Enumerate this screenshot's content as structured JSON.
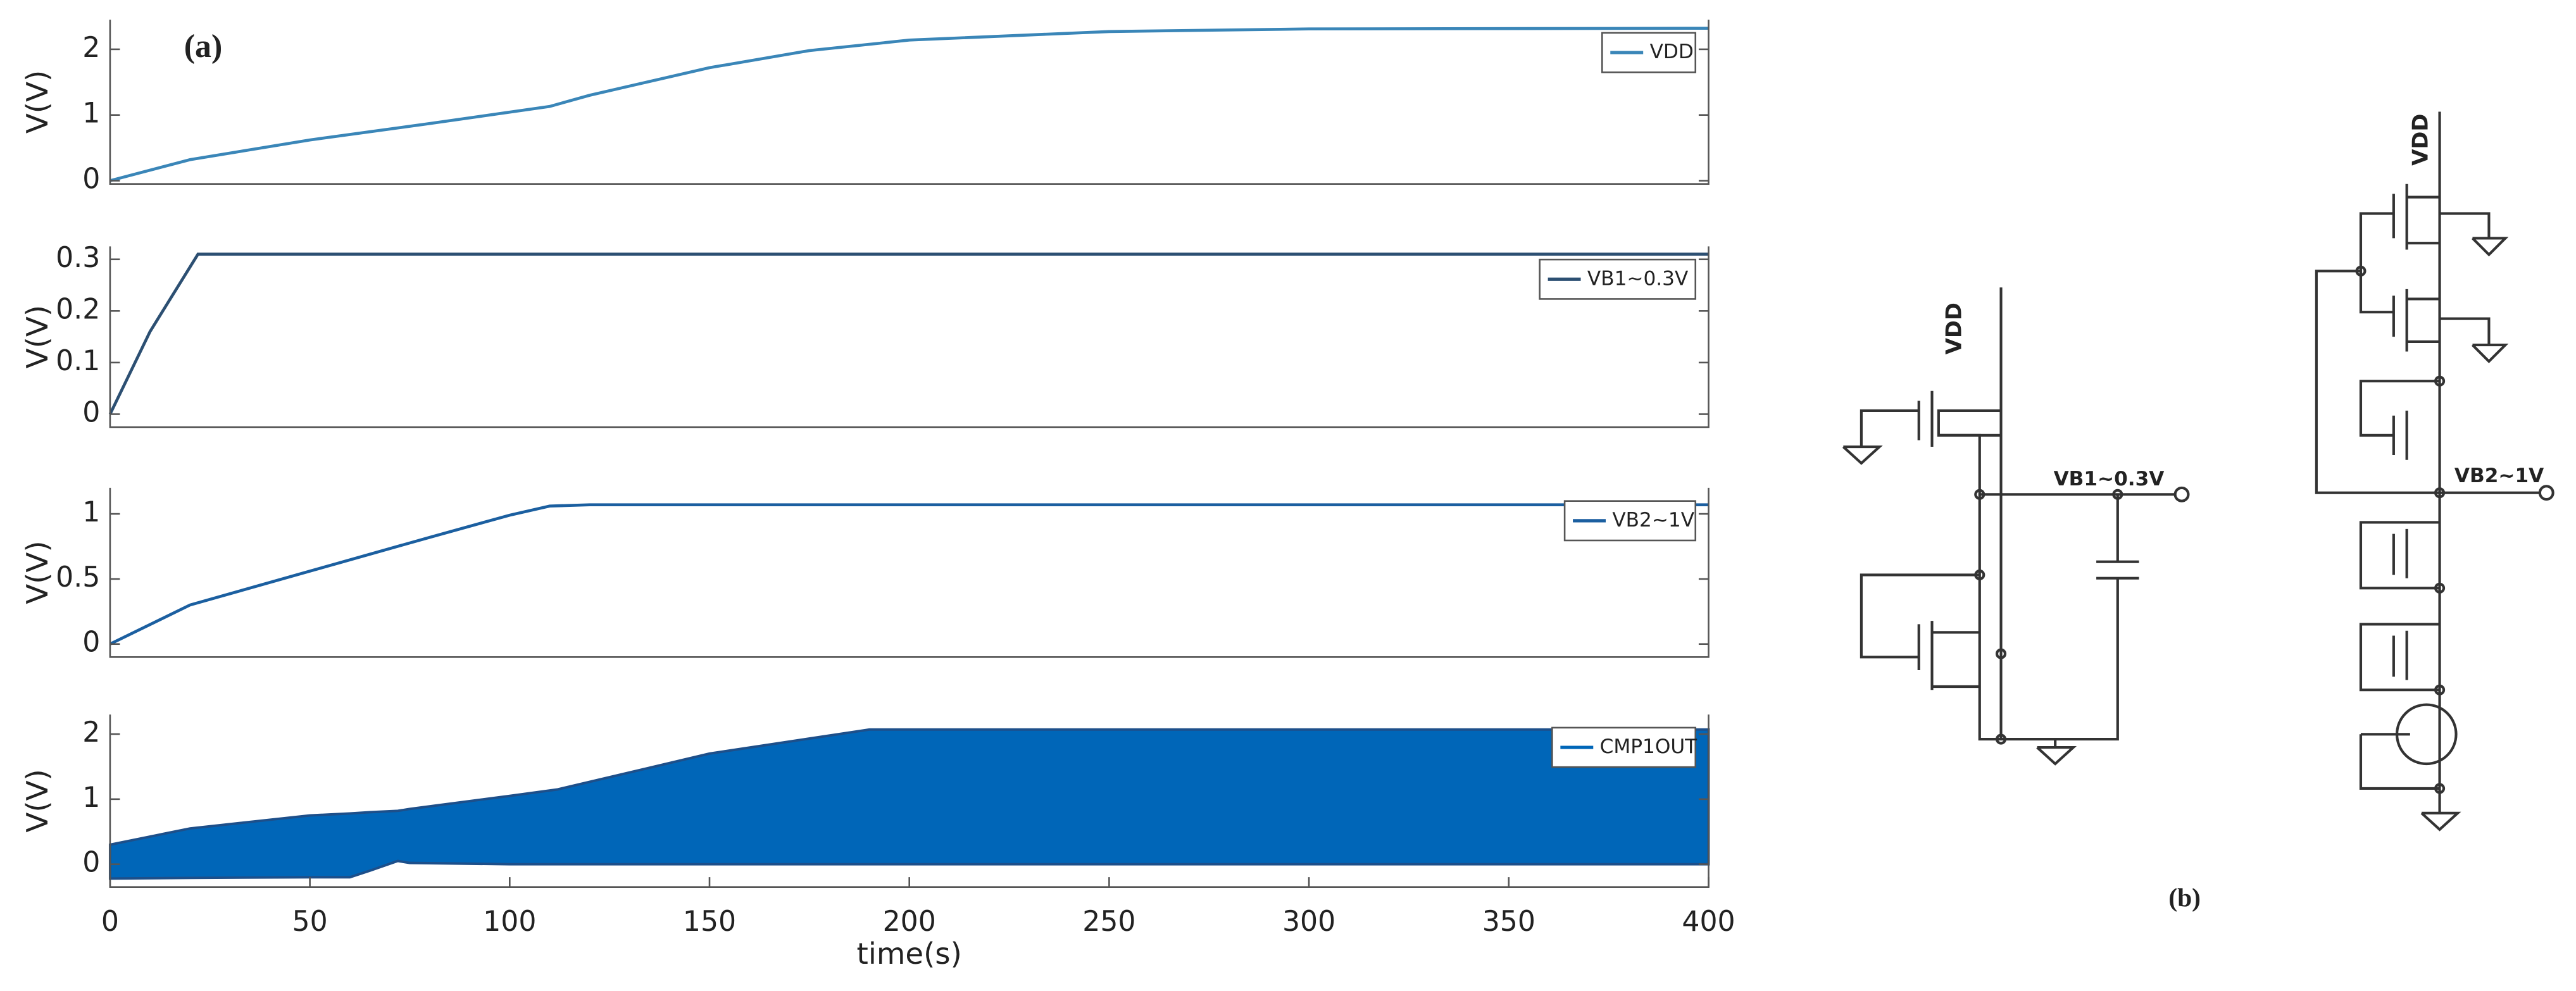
{
  "chart_data": [
    {
      "type": "line",
      "ylabel": "V(V)",
      "xlim": [
        0,
        400
      ],
      "ylim": [
        -0.05,
        2.45
      ],
      "yticks": [
        0,
        1,
        2
      ],
      "x": [
        0,
        20,
        50,
        80,
        110,
        120,
        150,
        175,
        200,
        250,
        300,
        400
      ],
      "series": [
        {
          "name": "VDD",
          "color": "#3a86b8",
          "values": [
            0,
            0.32,
            0.62,
            0.87,
            1.13,
            1.3,
            1.72,
            1.98,
            2.14,
            2.27,
            2.31,
            2.32
          ]
        }
      ]
    },
    {
      "type": "line",
      "ylabel": "V(V)",
      "xlim": [
        0,
        400
      ],
      "ylim": [
        -0.025,
        0.325
      ],
      "yticks": [
        0,
        0.1,
        0.2,
        0.3
      ],
      "x": [
        0,
        10,
        22,
        400
      ],
      "series": [
        {
          "name": "VB1~0.3V",
          "color": "#2c4f72",
          "values": [
            0,
            0.16,
            0.31,
            0.31
          ]
        }
      ]
    },
    {
      "type": "line",
      "ylabel": "V(V)",
      "xlim": [
        0,
        400
      ],
      "ylim": [
        -0.1,
        1.2
      ],
      "yticks": [
        0,
        0.5,
        1
      ],
      "x": [
        0,
        20,
        50,
        80,
        100,
        110,
        120,
        400
      ],
      "series": [
        {
          "name": "VB2~1V",
          "color": "#1b5fa0",
          "values": [
            0,
            0.3,
            0.56,
            0.82,
            0.99,
            1.06,
            1.07,
            1.07
          ]
        }
      ]
    },
    {
      "type": "area",
      "ylabel": "V(V)",
      "xlabel": "time(s)",
      "xlim": [
        0,
        400
      ],
      "ylim": [
        -0.35,
        2.3
      ],
      "yticks": [
        0,
        1,
        2
      ],
      "xticks": [
        0,
        50,
        100,
        150,
        200,
        250,
        300,
        350,
        400
      ],
      "x": [
        0,
        20,
        50,
        60,
        65,
        72,
        75,
        100,
        112,
        150,
        190,
        400
      ],
      "series": [
        {
          "name": "CMP1OUT",
          "color": "#0066b8",
          "values": [
            0.3,
            0.55,
            0.75,
            0.78,
            0.8,
            0.82,
            0.85,
            1.05,
            1.15,
            1.7,
            2.07,
            2.07
          ],
          "lower": [
            -0.22,
            -0.21,
            -0.2,
            -0.2,
            -0.1,
            0.05,
            0.02,
            0,
            0,
            0,
            0,
            0
          ]
        }
      ]
    }
  ],
  "annotations": {
    "a": "(a)",
    "b": "(b)"
  },
  "circuits": [
    {
      "supply": "VDD",
      "output": "VB1~0.3V"
    },
    {
      "supply": "VDD",
      "output": "VB2~1V"
    }
  ]
}
